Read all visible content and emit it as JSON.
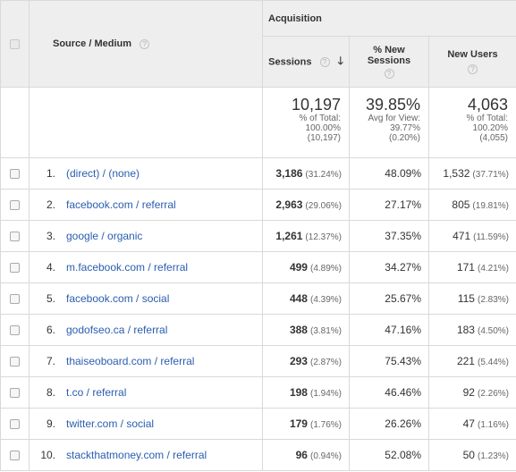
{
  "header": {
    "group_label": "Acquisition",
    "source_medium_label": "Source / Medium",
    "sessions_label": "Sessions",
    "new_sessions_label_line1": "% New",
    "new_sessions_label_line2": "Sessions",
    "new_users_label": "New Users",
    "help_glyph": "?",
    "sort_glyph": "🡓"
  },
  "totals": {
    "sessions": {
      "value": "10,197",
      "line1": "% of Total:",
      "line2": "100.00%",
      "line3": "(10,197)"
    },
    "new_sessions": {
      "value": "39.85%",
      "line1": "Avg for View:",
      "line2": "39.77%",
      "line3": "(0.20%)"
    },
    "new_users": {
      "value": "4,063",
      "line1": "% of Total:",
      "line2": "100.20%",
      "line3": "(4,055)"
    }
  },
  "rows": [
    {
      "rank": "1.",
      "source": "(direct) / (none)",
      "sessions": "3,186",
      "sessions_pct": "(31.24%)",
      "new_sessions": "48.09%",
      "new_users": "1,532",
      "new_users_pct": "(37.71%)"
    },
    {
      "rank": "2.",
      "source": "facebook.com / referral",
      "sessions": "2,963",
      "sessions_pct": "(29.06%)",
      "new_sessions": "27.17%",
      "new_users": "805",
      "new_users_pct": "(19.81%)"
    },
    {
      "rank": "3.",
      "source": "google / organic",
      "sessions": "1,261",
      "sessions_pct": "(12.37%)",
      "new_sessions": "37.35%",
      "new_users": "471",
      "new_users_pct": "(11.59%)"
    },
    {
      "rank": "4.",
      "source": "m.facebook.com / referral",
      "sessions": "499",
      "sessions_pct": "(4.89%)",
      "new_sessions": "34.27%",
      "new_users": "171",
      "new_users_pct": "(4.21%)"
    },
    {
      "rank": "5.",
      "source": "facebook.com / social",
      "sessions": "448",
      "sessions_pct": "(4.39%)",
      "new_sessions": "25.67%",
      "new_users": "115",
      "new_users_pct": "(2.83%)"
    },
    {
      "rank": "6.",
      "source": "godofseo.ca / referral",
      "sessions": "388",
      "sessions_pct": "(3.81%)",
      "new_sessions": "47.16%",
      "new_users": "183",
      "new_users_pct": "(4.50%)"
    },
    {
      "rank": "7.",
      "source": "thaiseoboard.com / referral",
      "sessions": "293",
      "sessions_pct": "(2.87%)",
      "new_sessions": "75.43%",
      "new_users": "221",
      "new_users_pct": "(5.44%)"
    },
    {
      "rank": "8.",
      "source": "t.co / referral",
      "sessions": "198",
      "sessions_pct": "(1.94%)",
      "new_sessions": "46.46%",
      "new_users": "92",
      "new_users_pct": "(2.26%)"
    },
    {
      "rank": "9.",
      "source": "twitter.com / social",
      "sessions": "179",
      "sessions_pct": "(1.76%)",
      "new_sessions": "26.26%",
      "new_users": "47",
      "new_users_pct": "(1.16%)"
    },
    {
      "rank": "10.",
      "source": "stackthatmoney.com / referral",
      "sessions": "96",
      "sessions_pct": "(0.94%)",
      "new_sessions": "52.08%",
      "new_users": "50",
      "new_users_pct": "(1.23%)"
    }
  ],
  "colors": {
    "link": "#2a5db0",
    "header_bg": "#eeeeee",
    "border": "#d9d9d9"
  }
}
